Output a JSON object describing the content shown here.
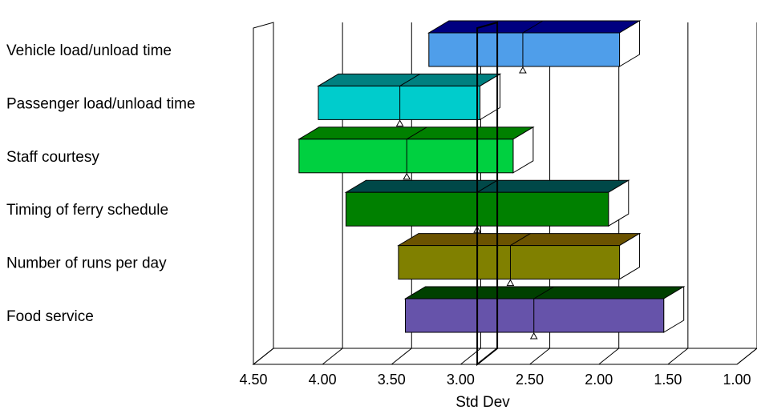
{
  "chart_data": {
    "type": "bar",
    "orientation": "horizontal",
    "style": "3d-floating-range",
    "xlabel": "Std Dev",
    "xlim": [
      4.5,
      1.0
    ],
    "x_reversed": true,
    "xticks": [
      "4.50",
      "4.00",
      "3.50",
      "3.00",
      "2.50",
      "2.00",
      "1.50",
      "1.00"
    ],
    "reference_line": 2.88,
    "grid": true,
    "items": [
      {
        "label": "Vehicle load/unload time",
        "low": 1.85,
        "high": 3.23,
        "marker": 2.55,
        "color": "#4f9eea",
        "dark": "#000080"
      },
      {
        "label": "Passenger load/unload time",
        "low": 2.86,
        "high": 4.03,
        "marker": 3.44,
        "color": "#00cccc",
        "dark": "#008080"
      },
      {
        "label": "Staff courtesy",
        "low": 2.62,
        "high": 4.17,
        "marker": 3.39,
        "color": "#00d040",
        "dark": "#008000"
      },
      {
        "label": "Timing of ferry schedule",
        "low": 1.93,
        "high": 3.83,
        "marker": 2.88,
        "color": "#008000",
        "dark": "#004848"
      },
      {
        "label": "Number of runs per day",
        "low": 1.85,
        "high": 3.45,
        "marker": 2.64,
        "color": "#808000",
        "dark": "#6b5300"
      },
      {
        "label": "Food service",
        "low": 1.53,
        "high": 3.4,
        "marker": 2.47,
        "color": "#6653aa",
        "dark": "#004000"
      }
    ]
  }
}
